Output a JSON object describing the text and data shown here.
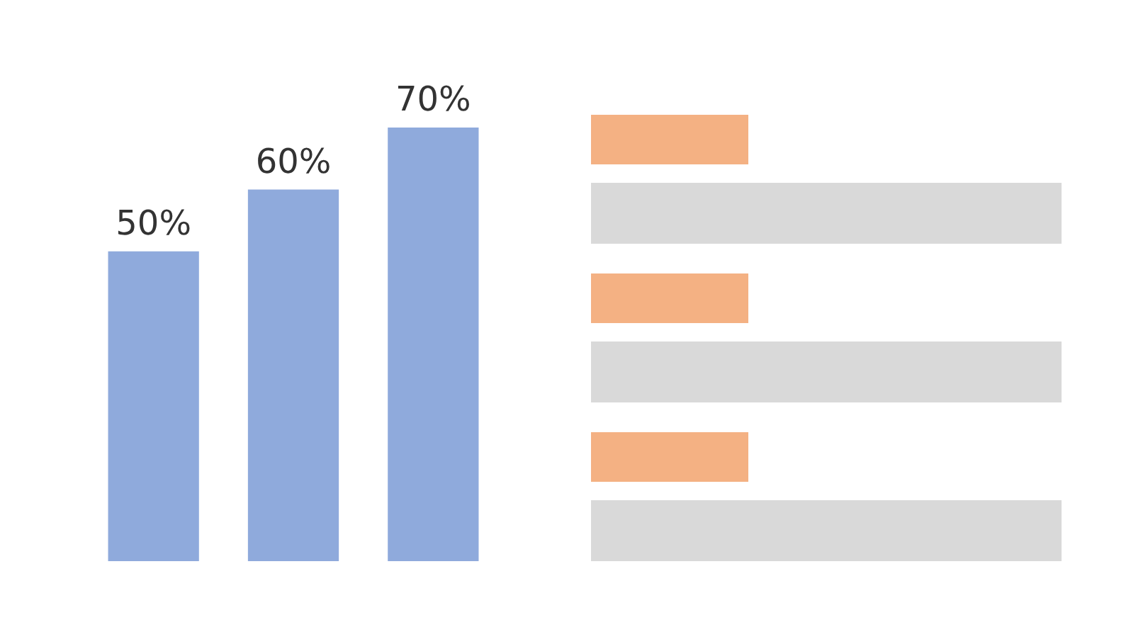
{
  "chart_data": {
    "type": "bar",
    "categories": [
      null,
      null,
      null
    ],
    "values": [
      50,
      60,
      70
    ],
    "color": "#8faadc",
    "value_labels": [
      "50%",
      "60%",
      "70%"
    ]
  }
}
